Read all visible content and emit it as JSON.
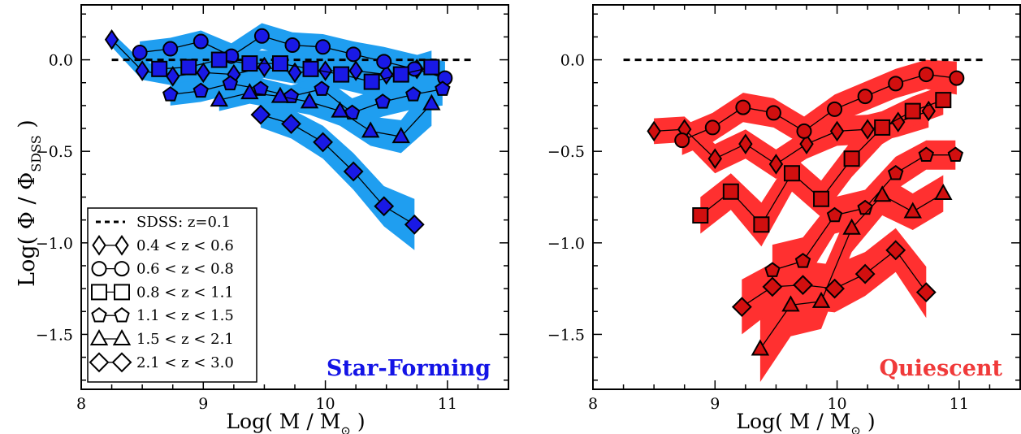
{
  "chart_data": [
    {
      "type": "line",
      "panel_label": "Star-Forming",
      "xlabel": "Log( M / M",
      "xlabel_sub": "⊙",
      "xlabel_close": " )",
      "ylabel": "Log( Φ / Φ",
      "ylabel_sub": "SDSS",
      "ylabel_close": " )",
      "xlim": [
        8.0,
        11.5
      ],
      "ylim": [
        -1.8,
        0.3
      ],
      "xticks": [
        "8",
        "9",
        "10",
        "11"
      ],
      "yticks": [
        "0.0",
        "−0.5",
        "−1.0",
        "−1.5"
      ],
      "band_color": "#1f9ef0",
      "marker_color": "#1919e6",
      "reference": {
        "name": "SDSS: z=0.1",
        "x": [
          8.25,
          11.2
        ],
        "y": [
          0.0,
          0.0
        ]
      },
      "legend": [
        "SDSS: z=0.1",
        "0.4 < z < 0.6",
        "0.6 < z < 0.8",
        "0.8 < z < 1.1",
        "1.1 < z < 1.5",
        "1.5 < z < 2.1",
        "2.1 < z < 3.0"
      ],
      "legend_position": "lower-left",
      "series": [
        {
          "name": "0.4 < z < 0.6",
          "marker": "diamond",
          "x": [
            8.25,
            8.5,
            8.75,
            9.0,
            9.25,
            9.5,
            9.75,
            10.0,
            10.25,
            10.5,
            10.75
          ],
          "y": [
            0.11,
            -0.06,
            -0.09,
            -0.07,
            -0.08,
            -0.04,
            -0.07,
            -0.06,
            -0.06,
            -0.08,
            -0.05
          ],
          "err": [
            0.04,
            0.05,
            0.05,
            0.06,
            0.06,
            0.06,
            0.06,
            0.06,
            0.06,
            0.07,
            0.07
          ]
        },
        {
          "name": "0.6 < z < 0.8",
          "marker": "circle",
          "x": [
            8.48,
            8.73,
            8.98,
            9.23,
            9.48,
            9.73,
            9.98,
            10.23,
            10.48,
            10.73,
            10.98
          ],
          "y": [
            0.04,
            0.06,
            0.1,
            0.02,
            0.13,
            0.08,
            0.07,
            0.03,
            -0.01,
            -0.05,
            -0.1
          ],
          "err": [
            0.06,
            0.06,
            0.06,
            0.07,
            0.07,
            0.07,
            0.07,
            0.07,
            0.08,
            0.08,
            0.09
          ]
        },
        {
          "name": "0.8 < z < 1.1",
          "marker": "square",
          "x": [
            8.64,
            8.88,
            9.13,
            9.38,
            9.63,
            9.88,
            10.13,
            10.38,
            10.62,
            10.87
          ],
          "y": [
            -0.05,
            -0.04,
            0.0,
            -0.02,
            -0.02,
            -0.05,
            -0.08,
            -0.12,
            -0.08,
            -0.04
          ],
          "err": [
            0.07,
            0.07,
            0.07,
            0.07,
            0.07,
            0.08,
            0.08,
            0.08,
            0.08,
            0.09
          ]
        },
        {
          "name": "1.1 < z < 1.5",
          "marker": "pentagon",
          "x": [
            8.73,
            8.98,
            9.22,
            9.47,
            9.72,
            9.97,
            10.22,
            10.47,
            10.72,
            10.96
          ],
          "y": [
            -0.19,
            -0.17,
            -0.13,
            -0.16,
            -0.2,
            -0.16,
            -0.29,
            -0.23,
            -0.19,
            -0.16
          ],
          "err": [
            0.06,
            0.06,
            0.06,
            0.06,
            0.06,
            0.07,
            0.08,
            0.08,
            0.08,
            0.09
          ]
        },
        {
          "name": "1.5 < z < 2.1",
          "marker": "triangle",
          "x": [
            9.13,
            9.38,
            9.63,
            9.87,
            10.12,
            10.37,
            10.62,
            10.87
          ],
          "y": [
            -0.22,
            -0.18,
            -0.2,
            -0.23,
            -0.28,
            -0.39,
            -0.42,
            -0.24
          ],
          "err": [
            0.06,
            0.06,
            0.07,
            0.07,
            0.08,
            0.08,
            0.09,
            0.12
          ]
        },
        {
          "name": "2.1 < z < 3.0",
          "marker": "diamond-large",
          "x": [
            9.47,
            9.72,
            9.98,
            10.23,
            10.48,
            10.73
          ],
          "y": [
            -0.3,
            -0.35,
            -0.45,
            -0.61,
            -0.8,
            -0.9
          ],
          "err": [
            0.07,
            0.08,
            0.09,
            0.1,
            0.11,
            0.14
          ]
        }
      ]
    },
    {
      "type": "line",
      "panel_label": "Quiescent",
      "xlabel": "Log( M / M",
      "xlabel_sub": "⊙",
      "xlabel_close": " )",
      "xlim": [
        8.0,
        11.5
      ],
      "ylim": [
        -1.8,
        0.3
      ],
      "xticks": [
        "8",
        "9",
        "10",
        "11"
      ],
      "yticks": [
        "0.0",
        "−0.5",
        "−1.0",
        "−1.5"
      ],
      "band_color": "#ff3030",
      "marker_color": "#d10f0f",
      "reference": {
        "name": "SDSS: z=0.1",
        "x": [
          8.25,
          11.2
        ],
        "y": [
          0.0,
          0.0
        ]
      },
      "series": [
        {
          "name": "0.4 < z < 0.6",
          "marker": "diamond",
          "x": [
            8.5,
            8.75,
            9.0,
            9.25,
            9.5,
            9.75,
            10.0,
            10.25,
            10.5,
            10.75
          ],
          "y": [
            -0.39,
            -0.38,
            -0.54,
            -0.46,
            -0.57,
            -0.46,
            -0.39,
            -0.38,
            -0.34,
            -0.28
          ],
          "err": [
            0.07,
            0.07,
            0.08,
            0.08,
            0.08,
            0.08,
            0.08,
            0.08,
            0.08,
            0.09
          ]
        },
        {
          "name": "0.6 < z < 0.8",
          "marker": "circle",
          "x": [
            8.73,
            8.98,
            9.23,
            9.48,
            9.73,
            9.98,
            10.23,
            10.48,
            10.73,
            10.98
          ],
          "y": [
            -0.44,
            -0.37,
            -0.26,
            -0.29,
            -0.39,
            -0.27,
            -0.2,
            -0.13,
            -0.08,
            -0.1
          ],
          "err": [
            0.08,
            0.08,
            0.08,
            0.08,
            0.08,
            0.08,
            0.08,
            0.08,
            0.08,
            0.09
          ]
        },
        {
          "name": "0.8 < z < 1.1",
          "marker": "square",
          "x": [
            8.88,
            9.13,
            9.38,
            9.63,
            9.87,
            10.12,
            10.37,
            10.62,
            10.87
          ],
          "y": [
            -0.85,
            -0.72,
            -0.9,
            -0.62,
            -0.76,
            -0.54,
            -0.37,
            -0.28,
            -0.22
          ],
          "err": [
            0.1,
            0.1,
            0.12,
            0.1,
            0.1,
            0.1,
            0.09,
            0.08,
            0.08
          ]
        },
        {
          "name": "1.1 < z < 1.5",
          "marker": "pentagon",
          "x": [
            9.47,
            9.72,
            9.98,
            10.23,
            10.48,
            10.73,
            10.97
          ],
          "y": [
            -1.15,
            -1.1,
            -0.85,
            -0.81,
            -0.62,
            -0.52,
            -0.52
          ],
          "err": [
            0.14,
            0.13,
            0.1,
            0.1,
            0.09,
            0.08,
            0.08
          ]
        },
        {
          "name": "1.5 < z < 2.1",
          "marker": "triangle",
          "x": [
            9.37,
            9.62,
            9.87,
            10.12,
            10.37,
            10.62,
            10.87
          ],
          "y": [
            -1.58,
            -1.34,
            -1.32,
            -0.92,
            -0.74,
            -0.83,
            -0.73
          ],
          "err": [
            0.18,
            0.17,
            0.15,
            0.13,
            0.11,
            0.1,
            0.1
          ]
        },
        {
          "name": "2.1 < z < 3.0",
          "marker": "diamond-large",
          "x": [
            9.22,
            9.47,
            9.72,
            9.98,
            10.23,
            10.48,
            10.73
          ],
          "y": [
            -1.35,
            -1.24,
            -1.23,
            -1.25,
            -1.17,
            -1.04,
            -1.27
          ],
          "err": [
            0.15,
            0.13,
            0.13,
            0.13,
            0.12,
            0.12,
            0.14
          ]
        }
      ]
    }
  ]
}
